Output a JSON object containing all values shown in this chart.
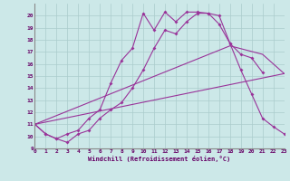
{
  "xlabel": "Windchill (Refroidissement éolien,°C)",
  "bg_color": "#cce8e8",
  "grid_color": "#aacccc",
  "line_color": "#993399",
  "xlim": [
    0,
    23
  ],
  "ylim": [
    9,
    21
  ],
  "yticks": [
    9,
    10,
    11,
    12,
    13,
    14,
    15,
    16,
    17,
    18,
    19,
    20
  ],
  "xticks": [
    0,
    1,
    2,
    3,
    4,
    5,
    6,
    7,
    8,
    9,
    10,
    11,
    12,
    13,
    14,
    15,
    16,
    17,
    18,
    19,
    20,
    21,
    22,
    23
  ],
  "line1_x": [
    0,
    1,
    2,
    3,
    4,
    5,
    6,
    7,
    8,
    9,
    10,
    11,
    12,
    13,
    14,
    15,
    16,
    17,
    18,
    19,
    20,
    21
  ],
  "line1_y": [
    11,
    10.2,
    9.8,
    10.2,
    10.5,
    11.5,
    12.2,
    14.4,
    16.3,
    17.3,
    20.2,
    18.8,
    20.3,
    19.5,
    20.3,
    20.3,
    20.2,
    19.3,
    17.7,
    16.8,
    16.5,
    15.3
  ],
  "line2_x": [
    0,
    1,
    2,
    3,
    4,
    5,
    6,
    7,
    8,
    9,
    10,
    11,
    12,
    13,
    14,
    15,
    16,
    17,
    18,
    19,
    20,
    21,
    22,
    23
  ],
  "line2_y": [
    11,
    10.2,
    9.8,
    9.5,
    10.2,
    10.5,
    11.5,
    12.2,
    12.8,
    14.0,
    15.5,
    17.3,
    18.8,
    18.5,
    19.5,
    20.2,
    20.2,
    20.0,
    17.7,
    15.5,
    13.5,
    11.5,
    10.8,
    10.2
  ],
  "line3_x": [
    0,
    23
  ],
  "line3_y": [
    11,
    15.2
  ],
  "line4_x": [
    0,
    18,
    21,
    23
  ],
  "line4_y": [
    11,
    17.5,
    16.8,
    15.2
  ]
}
